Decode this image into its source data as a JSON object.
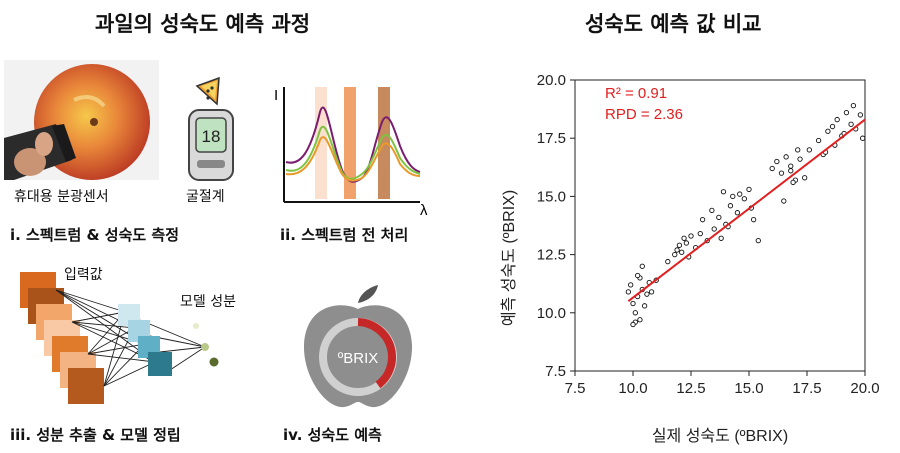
{
  "left_panel": {
    "title": "과일의 성숙도 예측 과정",
    "step1": {
      "caption": "i. 스펙트럼 & 성숙도 측정",
      "sensor_label": "휴대용 분광센서",
      "meter_label": "굴절계",
      "meter_display": "18"
    },
    "step2": {
      "caption": "ii. 스펙트럼 전 처리",
      "x_symbol": "λ",
      "y_symbol": "I"
    },
    "step3": {
      "caption": "iii. 성분 추출 & 모델 정립",
      "input_label": "입력값",
      "component_label": "모델 성분"
    },
    "step4": {
      "caption": "iv. 성숙도 예측",
      "unit_label": "ºBRIX"
    }
  },
  "right_panel": {
    "title": "성숙도 예측 값 비교"
  },
  "colors": {
    "fit_line": "#e02020",
    "annotation": "#e02020",
    "orange": "#d9691f",
    "teal": "#2d7a8c"
  },
  "chart_data": {
    "type": "scatter",
    "title": "성숙도 예측 값 비교",
    "xlabel": "실제 성숙도 (ºBRIX)",
    "ylabel": "예측 성숙도 (ºBRIX)",
    "xlim": [
      7.5,
      20.0
    ],
    "ylim": [
      7.5,
      20.0
    ],
    "xticks": [
      "7.5",
      "10.0",
      "12.5",
      "15.0",
      "17.5",
      "20.0"
    ],
    "yticks": [
      "7.5",
      "10.0",
      "12.5",
      "15.0",
      "17.5",
      "20.0"
    ],
    "annotations": [
      "R² = 0.91",
      "RPD = 2.36"
    ],
    "fit_line": {
      "x": [
        9.8,
        20.0
      ],
      "y": [
        10.5,
        18.3
      ]
    },
    "points": {
      "x": [
        9.8,
        9.9,
        10.0,
        10.1,
        10.1,
        10.2,
        10.3,
        10.3,
        10.4,
        10.5,
        10.6,
        10.7,
        10.8,
        10.0,
        10.2,
        10.4,
        11.0,
        11.5,
        11.8,
        12.0,
        12.1,
        12.3,
        12.4,
        12.5,
        12.7,
        12.9,
        13.0,
        13.2,
        13.4,
        13.5,
        13.7,
        13.9,
        14.0,
        14.2,
        14.3,
        14.5,
        14.6,
        14.8,
        15.0,
        15.2,
        13.8,
        14.1,
        15.1,
        16.0,
        16.2,
        16.4,
        16.6,
        16.8,
        17.0,
        17.2,
        17.4,
        16.5,
        16.9,
        17.6,
        18.0,
        18.2,
        18.4,
        18.6,
        18.8,
        19.0,
        19.2,
        19.4,
        19.6,
        19.8,
        19.9,
        18.3,
        18.7,
        19.1,
        19.5,
        16.8,
        17.1,
        15.4,
        12.2,
        11.9
      ],
      "y": [
        10.9,
        11.2,
        10.4,
        10.0,
        9.6,
        10.7,
        11.5,
        9.7,
        11.0,
        10.3,
        10.8,
        11.3,
        10.9,
        9.5,
        11.6,
        12.0,
        11.4,
        12.2,
        12.5,
        12.9,
        12.6,
        13.0,
        12.4,
        13.3,
        12.8,
        13.4,
        14.0,
        13.1,
        14.4,
        13.6,
        14.1,
        15.2,
        13.8,
        14.6,
        15.0,
        14.3,
        15.1,
        14.9,
        15.3,
        14.0,
        13.2,
        13.7,
        14.5,
        16.2,
        16.5,
        16.0,
        16.7,
        16.3,
        15.7,
        16.6,
        15.8,
        14.8,
        15.6,
        17.0,
        17.4,
        16.8,
        17.8,
        18.0,
        18.3,
        17.6,
        18.6,
        18.1,
        17.9,
        18.5,
        17.5,
        16.9,
        17.2,
        17.7,
        18.9,
        16.1,
        17.0,
        13.1,
        13.2,
        12.7
      ]
    }
  }
}
